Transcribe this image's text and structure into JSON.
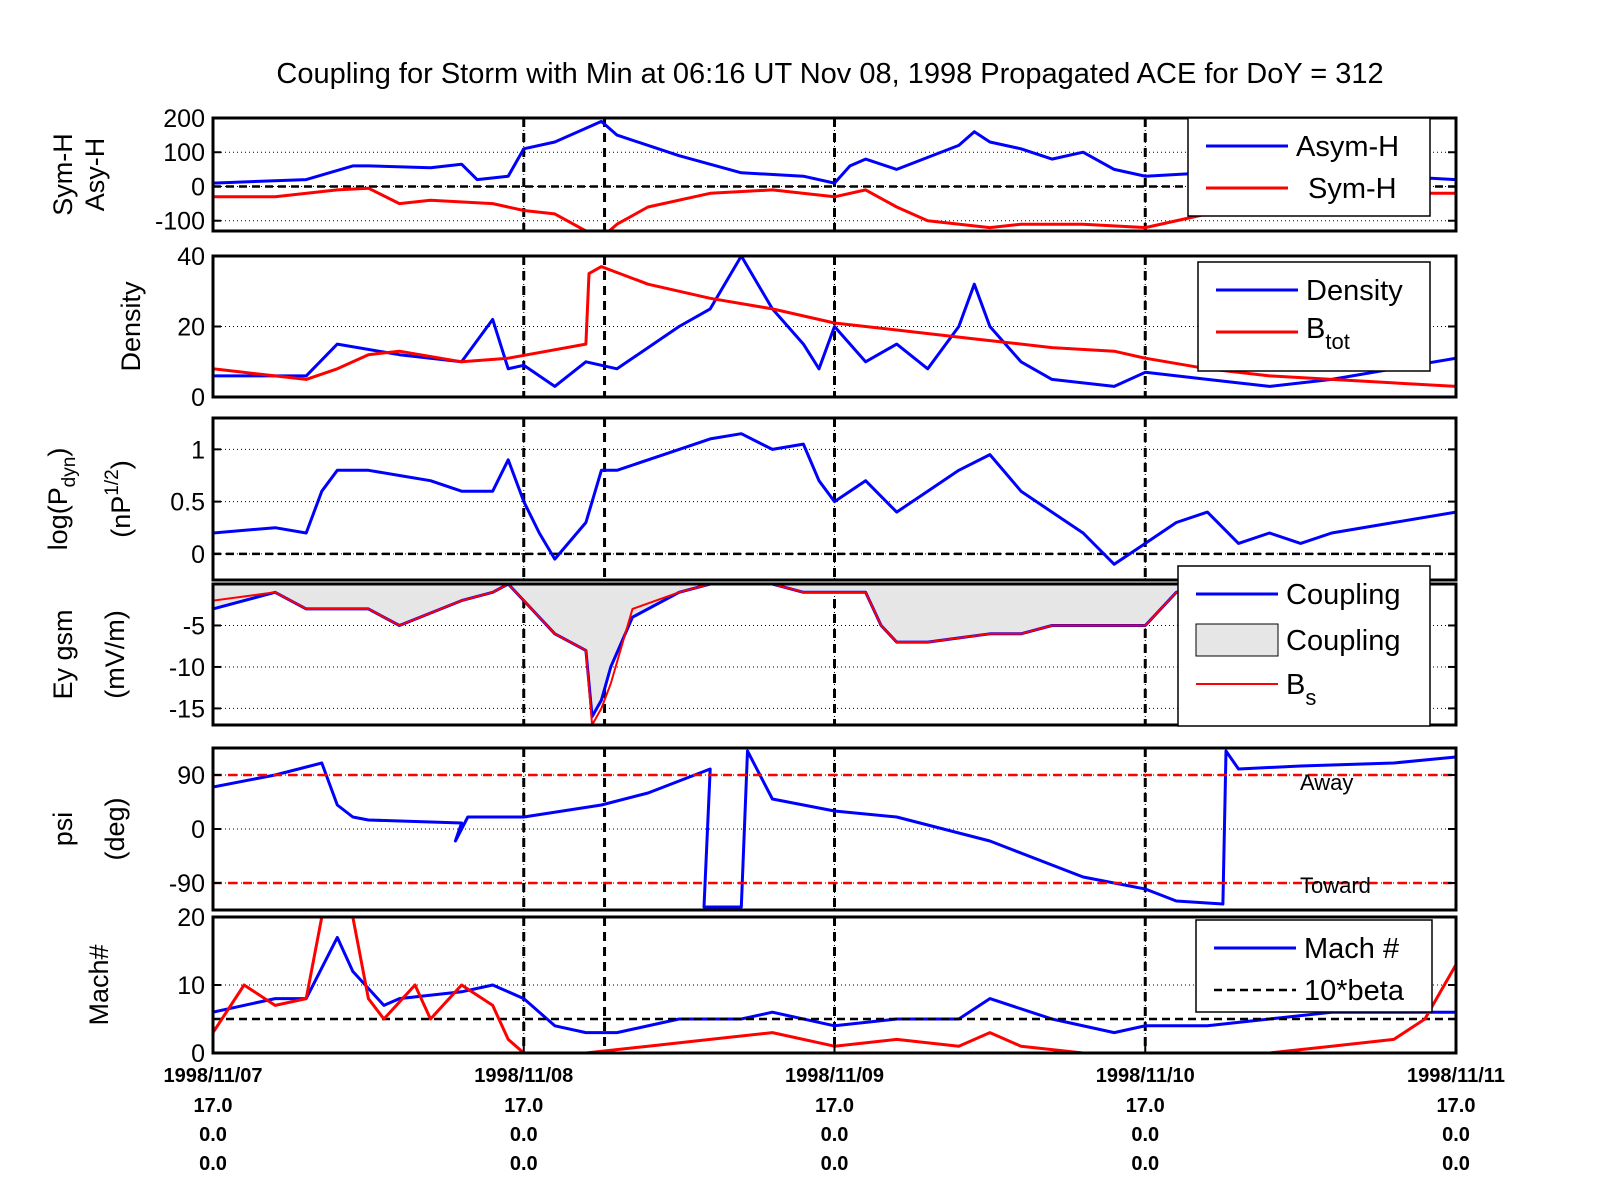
{
  "figure": {
    "title": "Coupling for Storm with Min at 06:16 UT Nov 08, 1998  Propagated ACE for DoY = 312"
  },
  "chart_data": [
    {
      "type": "line",
      "panel": "symh",
      "ylabel": [
        "Sym-H",
        "Asy-H"
      ],
      "ylim": [
        -130,
        200
      ],
      "yticks": [
        200,
        100,
        0,
        -100
      ],
      "xlim": [
        0,
        4
      ],
      "series": [
        {
          "name": "Asym-H",
          "color": "#0000ff",
          "x": [
            0,
            0.3,
            0.45,
            0.5,
            0.7,
            0.8,
            0.85,
            0.95,
            1.0,
            1.1,
            1.2,
            1.25,
            1.3,
            1.5,
            1.7,
            1.9,
            2.0,
            2.05,
            2.1,
            2.2,
            2.4,
            2.45,
            2.5,
            2.6,
            2.7,
            2.8,
            2.9,
            3.0,
            3.2,
            3.4,
            3.6,
            3.8,
            4.0
          ],
          "y": [
            10,
            20,
            60,
            60,
            55,
            65,
            20,
            30,
            110,
            130,
            170,
            190,
            150,
            90,
            40,
            30,
            10,
            60,
            80,
            50,
            120,
            160,
            130,
            110,
            80,
            100,
            50,
            30,
            40,
            30,
            30,
            30,
            20
          ]
        },
        {
          "name": "Sym-H",
          "color": "#ff0000",
          "x": [
            0,
            0.2,
            0.4,
            0.5,
            0.6,
            0.7,
            0.9,
            1.0,
            1.1,
            1.2,
            1.25,
            1.3,
            1.4,
            1.6,
            1.8,
            2.0,
            2.1,
            2.2,
            2.3,
            2.5,
            2.6,
            2.8,
            3.0,
            3.2,
            3.4,
            3.6,
            3.8,
            4.0
          ],
          "y": [
            -30,
            -30,
            -10,
            -5,
            -50,
            -40,
            -50,
            -70,
            -80,
            -130,
            -150,
            -110,
            -60,
            -20,
            -10,
            -30,
            -10,
            -60,
            -100,
            -120,
            -110,
            -110,
            -120,
            -80,
            -50,
            -30,
            -20,
            -20
          ]
        }
      ],
      "legend": {
        "position": "top-right"
      }
    },
    {
      "type": "line",
      "panel": "density",
      "ylabel": [
        "Density"
      ],
      "ylim": [
        0,
        40
      ],
      "yticks": [
        40,
        20,
        0
      ],
      "xlim": [
        0,
        4
      ],
      "series": [
        {
          "name": "Density",
          "color": "#0000ff",
          "x": [
            0,
            0.3,
            0.4,
            0.6,
            0.8,
            0.9,
            0.95,
            1.0,
            1.1,
            1.2,
            1.3,
            1.5,
            1.6,
            1.7,
            1.8,
            1.9,
            1.95,
            2.0,
            2.1,
            2.2,
            2.3,
            2.4,
            2.45,
            2.5,
            2.6,
            2.7,
            2.9,
            3.0,
            3.2,
            3.4,
            3.6,
            3.8,
            4.0
          ],
          "y": [
            6,
            6,
            15,
            12,
            10,
            22,
            8,
            9,
            3,
            10,
            8,
            20,
            25,
            40,
            25,
            15,
            8,
            20,
            10,
            15,
            8,
            20,
            32,
            20,
            10,
            5,
            3,
            7,
            5,
            3,
            5,
            8,
            11
          ]
        },
        {
          "name": "B_tot",
          "color": "#ff0000",
          "x": [
            0,
            0.2,
            0.3,
            0.4,
            0.5,
            0.6,
            0.8,
            0.95,
            1.2,
            1.21,
            1.25,
            1.4,
            1.6,
            1.8,
            2.0,
            2.2,
            2.4,
            2.5,
            2.7,
            2.9,
            3.0,
            3.2,
            3.4,
            3.6,
            3.8,
            4.0
          ],
          "y": [
            8,
            6,
            5,
            8,
            12,
            13,
            10,
            11,
            15,
            35,
            37,
            32,
            28,
            25,
            21,
            19,
            17,
            16,
            14,
            13,
            11,
            8,
            6,
            5,
            4,
            3
          ]
        }
      ],
      "legend": {
        "position": "top-right"
      }
    },
    {
      "type": "line",
      "panel": "pdyn",
      "ylabel": [
        "log(P",
        "dyn",
        ")",
        "(nP",
        "1/2",
        ")"
      ],
      "ylim": [
        -0.25,
        1.3
      ],
      "yticks": [
        1,
        0.5,
        0
      ],
      "xlim": [
        0,
        4
      ],
      "series": [
        {
          "name": "log Pdyn",
          "color": "#0000ff",
          "x": [
            0,
            0.2,
            0.3,
            0.35,
            0.4,
            0.5,
            0.6,
            0.7,
            0.8,
            0.9,
            0.95,
            1.0,
            1.05,
            1.1,
            1.2,
            1.25,
            1.3,
            1.5,
            1.6,
            1.7,
            1.8,
            1.9,
            1.95,
            2.0,
            2.1,
            2.2,
            2.3,
            2.4,
            2.5,
            2.6,
            2.7,
            2.8,
            2.9,
            3.0,
            3.1,
            3.2,
            3.3,
            3.4,
            3.5,
            3.6,
            3.8,
            4.0
          ],
          "y": [
            0.2,
            0.25,
            0.2,
            0.6,
            0.8,
            0.8,
            0.75,
            0.7,
            0.6,
            0.6,
            0.9,
            0.5,
            0.2,
            -0.05,
            0.3,
            0.8,
            0.8,
            1.0,
            1.1,
            1.15,
            1.0,
            1.05,
            0.7,
            0.5,
            0.7,
            0.4,
            0.6,
            0.8,
            0.95,
            0.6,
            0.4,
            0.2,
            -0.1,
            0.1,
            0.3,
            0.4,
            0.1,
            0.2,
            0.1,
            0.2,
            0.3,
            0.4
          ]
        }
      ]
    },
    {
      "type": "area",
      "panel": "ey",
      "ylabel": [
        "Ey gsm",
        "(mV/m)"
      ],
      "ylim": [
        -17,
        0
      ],
      "yticks": [
        -5,
        -10,
        -15
      ],
      "xlim": [
        0,
        4
      ],
      "series": [
        {
          "name": "Coupling",
          "color": "#0000ff",
          "x": [
            0,
            0.2,
            0.3,
            0.5,
            0.6,
            0.8,
            0.9,
            0.95,
            1.0,
            1.1,
            1.2,
            1.22,
            1.25,
            1.28,
            1.35,
            1.5,
            1.6,
            1.8,
            1.9,
            2.0,
            2.1,
            2.15,
            2.2,
            2.3,
            2.5,
            2.6,
            2.7,
            3.0,
            3.1,
            3.2,
            3.3,
            3.5,
            4.0
          ],
          "y": [
            -3,
            -1,
            -3,
            -3,
            -5,
            -2,
            -1,
            0,
            -2,
            -6,
            -8,
            -16,
            -14,
            -10,
            -4,
            -1,
            0,
            0,
            -1,
            -1,
            -1,
            -5,
            -7,
            -7,
            -6,
            -6,
            -5,
            -5,
            -1,
            0,
            0,
            0,
            0
          ]
        },
        {
          "name": "Coupling",
          "color": "#e6e6e6"
        },
        {
          "name": "B_s",
          "color": "#ff0000",
          "x": [
            0,
            0.2,
            0.3,
            0.5,
            0.6,
            0.8,
            0.9,
            0.95,
            1.0,
            1.1,
            1.2,
            1.22,
            1.25,
            1.28,
            1.35,
            1.5,
            1.6,
            1.8,
            1.9,
            2.0,
            2.1,
            2.15,
            2.2,
            2.3,
            2.5,
            2.6,
            2.7,
            3.0,
            3.1,
            3.2,
            3.3,
            3.5,
            4.0
          ],
          "y": [
            -2,
            -1,
            -3,
            -3,
            -5,
            -2,
            -1,
            0,
            -2,
            -6,
            -8,
            -17,
            -15,
            -12,
            -3,
            -1,
            0,
            0,
            -1,
            -1,
            -1,
            -5,
            -7,
            -7,
            -6,
            -6,
            -5,
            -5,
            -1,
            0,
            0,
            0,
            0
          ]
        }
      ],
      "legend": {
        "position": "top-right"
      }
    },
    {
      "type": "line",
      "panel": "psi",
      "ylabel": [
        "psi",
        "(deg)"
      ],
      "ylim": [
        -135,
        135
      ],
      "yticks": [
        90,
        0,
        -90
      ],
      "xlim": [
        0,
        4
      ],
      "annotations": [
        "Away",
        "Toward"
      ],
      "series": [
        {
          "name": "psi",
          "color": "#0000ff",
          "x": [
            0,
            0.2,
            0.35,
            0.4,
            0.45,
            0.5,
            0.8,
            0.78,
            0.82,
            1.0,
            1.25,
            1.4,
            1.6,
            1.58,
            1.6,
            1.7,
            1.72,
            1.8,
            2.0,
            2.2,
            2.5,
            2.8,
            3.0,
            3.1,
            3.25,
            3.26,
            3.3,
            3.5,
            3.8,
            4.0
          ],
          "y": [
            70,
            90,
            110,
            40,
            20,
            15,
            10,
            -20,
            20,
            20,
            40,
            60,
            100,
            -130,
            -130,
            -130,
            130,
            50,
            30,
            20,
            -20,
            -80,
            -100,
            -120,
            -125,
            130,
            100,
            105,
            110,
            120
          ]
        },
        {
          "name": "away",
          "color": "#ff0000",
          "x": [
            0,
            4
          ],
          "y": [
            90,
            90
          ]
        },
        {
          "name": "toward",
          "color": "#ff0000",
          "x": [
            0,
            4
          ],
          "y": [
            -90,
            -90
          ]
        }
      ]
    },
    {
      "type": "line",
      "panel": "mach",
      "ylabel": [
        "Mach#"
      ],
      "ylim": [
        0,
        20
      ],
      "yticks": [
        20,
        10,
        0
      ],
      "xlim": [
        0,
        4
      ],
      "series": [
        {
          "name": "Mach #",
          "color": "#0000ff",
          "x": [
            0,
            0.2,
            0.3,
            0.4,
            0.45,
            0.55,
            0.6,
            0.8,
            0.9,
            1.0,
            1.1,
            1.2,
            1.3,
            1.5,
            1.7,
            1.8,
            2.0,
            2.2,
            2.4,
            2.5,
            2.7,
            2.9,
            3.0,
            3.2,
            3.4,
            3.6,
            3.8,
            4.0
          ],
          "y": [
            6,
            8,
            8,
            17,
            12,
            7,
            8,
            9,
            10,
            8,
            4,
            3,
            3,
            5,
            5,
            6,
            4,
            5,
            5,
            8,
            5,
            3,
            4,
            4,
            5,
            6,
            6,
            6
          ]
        },
        {
          "name": "10*beta",
          "color": "#000000",
          "x": [
            0,
            4
          ],
          "y": [
            5,
            5
          ]
        },
        {
          "name": "beta",
          "color": "#ff0000",
          "x": [
            0,
            0.1,
            0.2,
            0.3,
            0.35,
            0.45,
            0.5,
            0.55,
            0.65,
            0.7,
            0.8,
            0.9,
            0.95,
            1.0,
            1.1,
            1.2,
            1.4,
            1.6,
            1.8,
            2.0,
            2.2,
            2.4,
            2.5,
            2.6,
            2.8,
            3.0,
            3.2,
            3.4,
            3.6,
            3.8,
            3.9,
            4.0
          ],
          "y": [
            3,
            10,
            7,
            8,
            20,
            20,
            8,
            5,
            10,
            5,
            10,
            7,
            2,
            0,
            0,
            0,
            1,
            2,
            3,
            1,
            2,
            1,
            3,
            1,
            0,
            0,
            0,
            0,
            1,
            2,
            5,
            13
          ]
        }
      ],
      "legend": {
        "position": "top-right"
      }
    }
  ],
  "x_axis": {
    "dates": [
      "1998/11/07",
      "1998/11/08",
      "1998/11/09",
      "1998/11/10",
      "1998/11/11"
    ],
    "row2": [
      "17.0",
      "17.0",
      "17.0",
      "17.0",
      "17.0"
    ],
    "row3": [
      "0.0",
      "0.0",
      "0.0",
      "0.0",
      "0.0"
    ],
    "row4": [
      "0.0",
      "0.0",
      "0.0",
      "0.0",
      "0.0"
    ]
  },
  "vertical_markers": [
    1.0,
    1.26,
    2.0,
    3.0
  ],
  "legends": {
    "symh": [
      "Asym-H",
      "Sym-H"
    ],
    "density": [
      "Density",
      "B",
      "tot"
    ],
    "ey": [
      "Coupling",
      "Coupling",
      "B",
      "s"
    ],
    "mach": [
      "Mach #",
      "10*beta"
    ]
  }
}
